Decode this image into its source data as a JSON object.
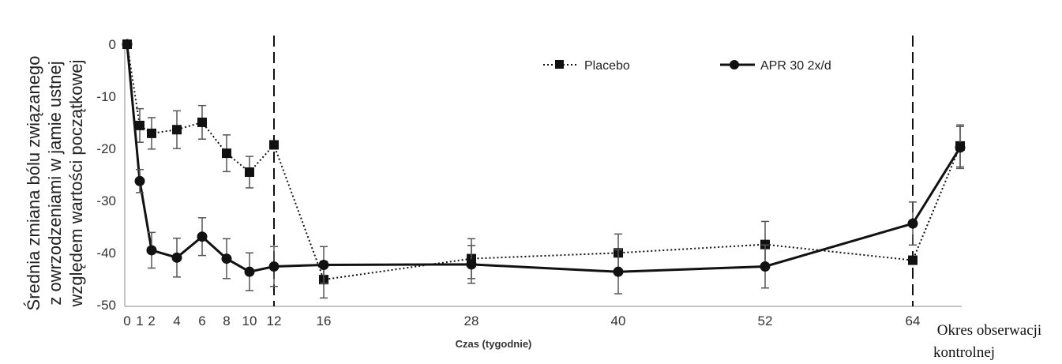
{
  "chart_data": {
    "type": "line",
    "title": "",
    "xlabel": "Czas (tygodnie)",
    "ylabel_lines": [
      "Średnia zmiana bólu związanego",
      "z owrzodzeniami w jamie ustnej",
      "względem wartości początkowej"
    ],
    "x_ticks": [
      "0",
      "1",
      "2",
      "4",
      "6",
      "8",
      "10",
      "12",
      "16",
      "28",
      "40",
      "52",
      "64"
    ],
    "followup_label_lines": [
      "Okres obserwacji",
      "kontrolnej"
    ],
    "y_ticks": [
      "0",
      "-10",
      "-20",
      "-30",
      "-40",
      "-50"
    ],
    "ylim": [
      -50,
      0
    ],
    "grid": false,
    "legend_position": "top-right",
    "vertical_reference_lines": [
      "12",
      "64"
    ],
    "series": [
      {
        "name": "Placebo",
        "marker": "square",
        "line_style": "dotted",
        "color": "#111111",
        "points": [
          {
            "x": "0",
            "y": 0,
            "err": 0
          },
          {
            "x": "1",
            "y": -15.5,
            "err": 3.2
          },
          {
            "x": "2",
            "y": -17,
            "err": 3
          },
          {
            "x": "4",
            "y": -16.3,
            "err": 3.6
          },
          {
            "x": "6",
            "y": -14.9,
            "err": 3.2
          },
          {
            "x": "8",
            "y": -20.8,
            "err": 3.5
          },
          {
            "x": "10",
            "y": -24.4,
            "err": 3
          },
          {
            "x": "12",
            "y": -19.2,
            "err": 0
          },
          {
            "x": "16",
            "y": -44.9,
            "err": 3.5
          },
          {
            "x": "28",
            "y": -40.9,
            "err": 3.8
          },
          {
            "x": "40",
            "y": -39.8,
            "err": 3.6
          },
          {
            "x": "52",
            "y": -38.2,
            "err": 4.4
          },
          {
            "x": "64",
            "y": -41.2,
            "err": 0
          },
          {
            "x": "followup",
            "y": -19.4,
            "err": 4
          }
        ]
      },
      {
        "name": "APR 30 2x/d",
        "marker": "circle",
        "line_style": "solid",
        "color": "#111111",
        "points": [
          {
            "x": "0",
            "y": 0,
            "err": 0
          },
          {
            "x": "1",
            "y": -26.1,
            "err": 2.2
          },
          {
            "x": "2",
            "y": -39.3,
            "err": 3.4
          },
          {
            "x": "4",
            "y": -40.7,
            "err": 3.7
          },
          {
            "x": "6",
            "y": -36.7,
            "err": 3.6
          },
          {
            "x": "8",
            "y": -40.9,
            "err": 3.8
          },
          {
            "x": "10",
            "y": -43.4,
            "err": 3.6
          },
          {
            "x": "12",
            "y": -42.4,
            "err": 3.8
          },
          {
            "x": "16",
            "y": -42.1,
            "err": 3.5
          },
          {
            "x": "28",
            "y": -42,
            "err": 3.6
          },
          {
            "x": "40",
            "y": -43.4,
            "err": 4.2
          },
          {
            "x": "52",
            "y": -42.4,
            "err": 4.1
          },
          {
            "x": "64",
            "y": -34.2,
            "err": 4.1
          },
          {
            "x": "followup",
            "y": -19.7,
            "err": 4
          }
        ]
      }
    ]
  }
}
